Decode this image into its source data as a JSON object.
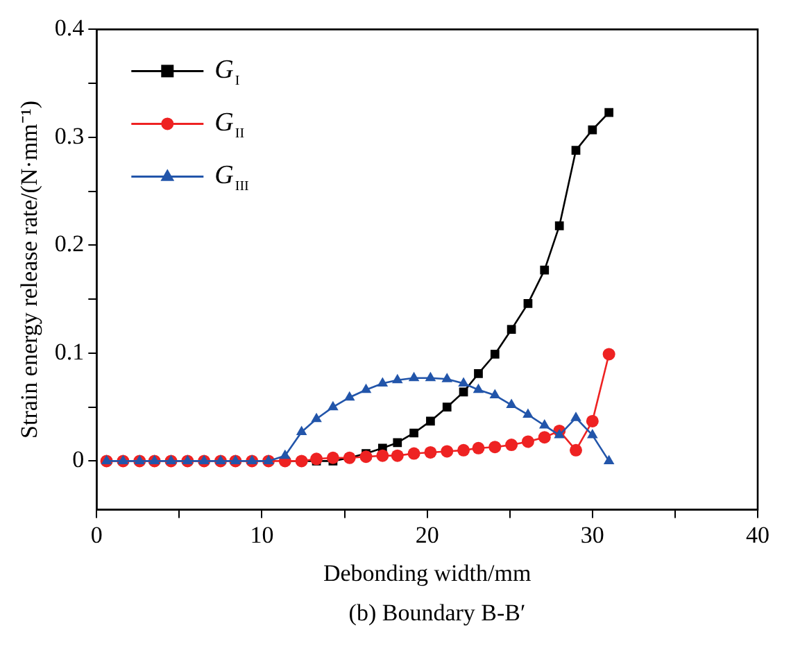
{
  "chart_data": {
    "type": "line",
    "xlabel": "Debonding width/mm",
    "ylabel": "Strain energy release rate/(N·mm⁻¹)",
    "annotations": [
      "(b) Boundary B-B′"
    ],
    "x": [
      0.6,
      1.6,
      2.6,
      3.5,
      4.5,
      5.5,
      6.5,
      7.5,
      8.4,
      9.4,
      10.4,
      11.4,
      12.4,
      13.3,
      14.3,
      15.3,
      16.3,
      17.3,
      18.2,
      19.2,
      20.2,
      21.2,
      22.2,
      23.1,
      24.1,
      25.1,
      26.1,
      27.1,
      28.0,
      29.0,
      30.0,
      31.0
    ],
    "series": [
      {
        "name": "G$_{I}$",
        "color": "#000000",
        "marker": "square",
        "values": [
          null,
          null,
          null,
          null,
          null,
          null,
          null,
          null,
          null,
          null,
          null,
          0,
          0,
          0,
          0,
          0.003,
          0.007,
          0.012,
          0.017,
          0.026,
          0.037,
          0.05,
          0.064,
          0.081,
          0.099,
          0.122,
          0.146,
          0.177,
          0.218,
          0.288,
          0.307,
          0.323
        ]
      },
      {
        "name": "G$_{II}$",
        "color": "#ee2222",
        "marker": "circle",
        "values": [
          0,
          0,
          0,
          0,
          0,
          0,
          0,
          0,
          0,
          0,
          0,
          0,
          0,
          0.002,
          0.003,
          0.003,
          0.004,
          0.005,
          0.005,
          0.007,
          0.008,
          0.009,
          0.01,
          0.012,
          0.013,
          0.015,
          0.018,
          0.022,
          0.028,
          0.01,
          0.037,
          0.099
        ]
      },
      {
        "name": "G$_{III}$",
        "color": "#2255aa",
        "marker": "triangle",
        "values": [
          0,
          0,
          0,
          0,
          0,
          0,
          0,
          0,
          0,
          0,
          0,
          0.005,
          0.027,
          0.039,
          0.05,
          0.059,
          0.066,
          0.072,
          0.075,
          0.077,
          0.077,
          0.076,
          0.072,
          0.066,
          0.061,
          0.052,
          0.043,
          0.033,
          0.024,
          0.04,
          0.024,
          0
        ]
      }
    ],
    "xlim": [
      0,
      40
    ],
    "xticks": [
      0,
      {
        "value": 5,
        "label": null
      },
      10,
      {
        "value": 15,
        "label": null
      },
      20,
      {
        "value": 25,
        "label": null
      },
      30,
      {
        "value": 35,
        "label": null
      },
      40
    ],
    "ylim": [
      -0.045,
      0.4
    ],
    "yticks": [
      0,
      {
        "value": 0.05,
        "label": null
      },
      0.1,
      {
        "value": 0.15,
        "label": null
      },
      0.2,
      {
        "value": 0.25,
        "label": null
      },
      0.3,
      {
        "value": 0.35,
        "label": null
      },
      0.4
    ],
    "grid": false,
    "legend": "top left",
    "line_style": "solid"
  }
}
